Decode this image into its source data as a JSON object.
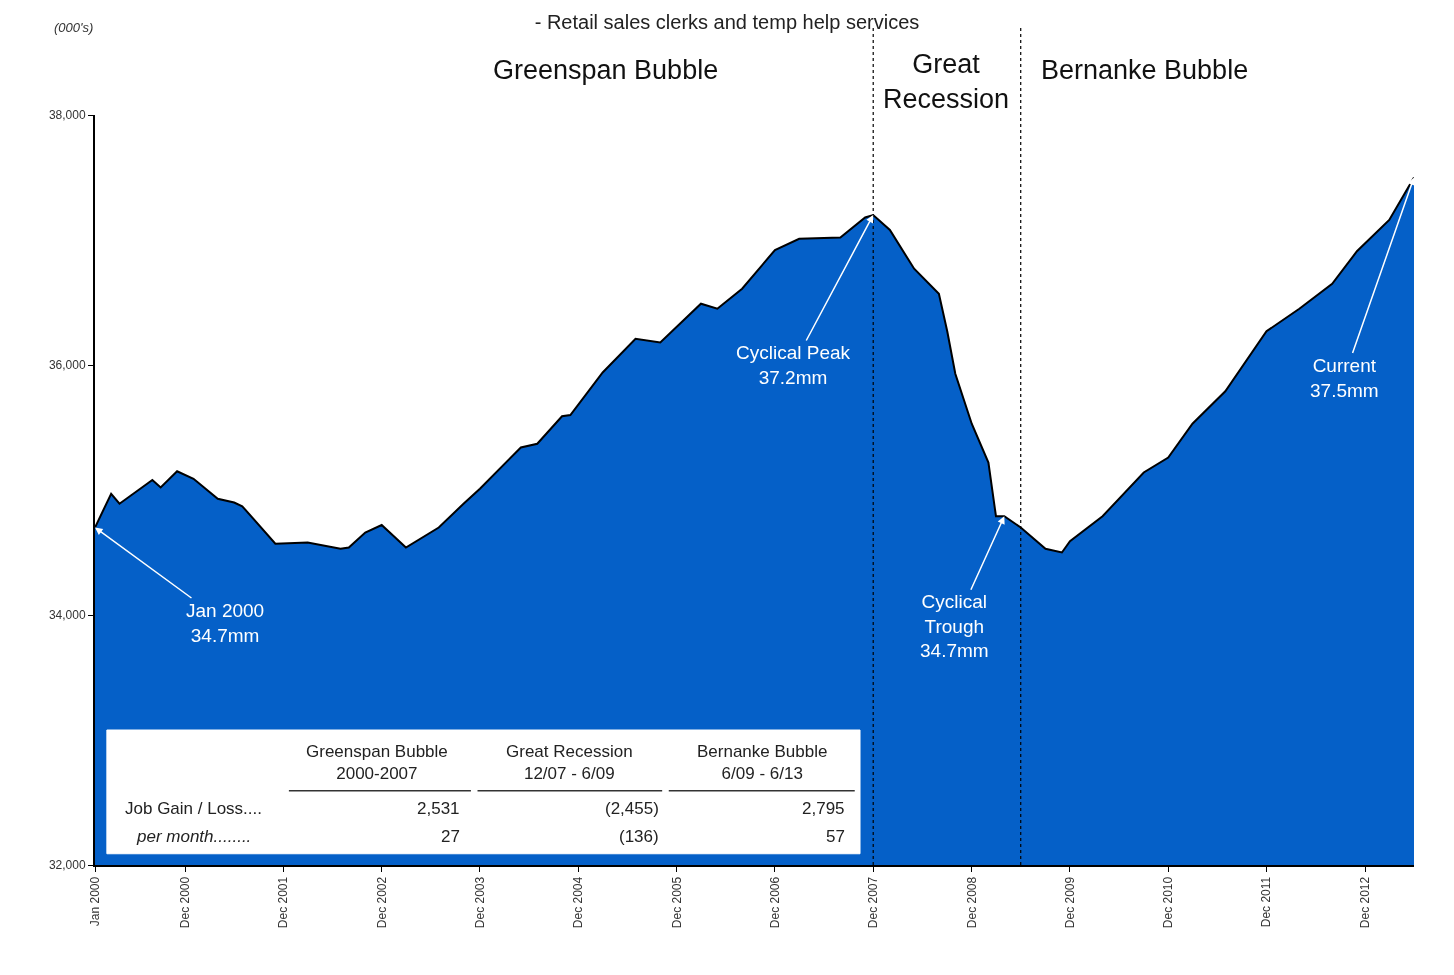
{
  "chart_data": {
    "type": "area",
    "title": "- Retail sales clerks and temp help services",
    "x": [
      "2000-01",
      "2000-03",
      "2000-04",
      "2000-08",
      "2000-09",
      "2000-11",
      "2001-01",
      "2001-04",
      "2001-06",
      "2001-07",
      "2001-11",
      "2002-03",
      "2002-07",
      "2002-08",
      "2002-10",
      "2002-12",
      "2003-03",
      "2003-07",
      "2003-10",
      "2003-12",
      "2004-05",
      "2004-07",
      "2004-10",
      "2004-11",
      "2005-03",
      "2005-07",
      "2005-10",
      "2006-03",
      "2006-05",
      "2006-08",
      "2006-12",
      "2007-03",
      "2007-08",
      "2007-11",
      "2007-12",
      "2008-02",
      "2008-05",
      "2008-08",
      "2008-09",
      "2008-10",
      "2008-12",
      "2009-02",
      "2009-03",
      "2009-04",
      "2009-06",
      "2009-09",
      "2009-11",
      "2009-12",
      "2010-04",
      "2010-09",
      "2010-12",
      "2011-03",
      "2011-07",
      "2011-12",
      "2012-04",
      "2012-08",
      "2012-11",
      "2013-03",
      "2013-06"
    ],
    "series": [
      {
        "color": "#0560c8",
        "values": [
          34700,
          34970,
          34890,
          35080,
          35020,
          35150,
          35090,
          34930,
          34900,
          34870,
          34570,
          34580,
          34530,
          34540,
          34660,
          34720,
          34540,
          34700,
          34890,
          35010,
          35340,
          35370,
          35590,
          35600,
          35940,
          36210,
          36180,
          36490,
          36450,
          36610,
          36920,
          37010,
          37020,
          37180,
          37200,
          37080,
          36770,
          36570,
          36270,
          35930,
          35530,
          35220,
          34790,
          34790,
          34700,
          34530,
          34500,
          34590,
          34790,
          35140,
          35260,
          35530,
          35790,
          36270,
          36450,
          36650,
          36910,
          37160,
          37500
        ]
      }
    ],
    "xlim": [
      "2000-01",
      "2013-06"
    ],
    "xticks": [
      {
        "value": "2000-01",
        "label": "Jan 2000"
      },
      {
        "value": "2000-12",
        "label": "Dec 2000"
      },
      {
        "value": "2001-12",
        "label": "Dec 2001"
      },
      {
        "value": "2002-12",
        "label": "Dec 2002"
      },
      {
        "value": "2003-12",
        "label": "Dec 2003"
      },
      {
        "value": "2004-12",
        "label": "Dec 2004"
      },
      {
        "value": "2005-12",
        "label": "Dec 2005"
      },
      {
        "value": "2006-12",
        "label": "Dec 2006"
      },
      {
        "value": "2007-12",
        "label": "Dec 2007"
      },
      {
        "value": "2008-12",
        "label": "Dec 2008"
      },
      {
        "value": "2009-12",
        "label": "Dec 2009"
      },
      {
        "value": "2010-12",
        "label": "Dec 2010"
      },
      {
        "value": "2011-12",
        "label": "Dec 2011"
      },
      {
        "value": "2012-12",
        "label": "Dec 2012"
      }
    ],
    "ylim": [
      32000,
      38000
    ],
    "yticks": [
      {
        "value": 32000,
        "label": "32,000"
      },
      {
        "value": 34000,
        "label": "34,000"
      },
      {
        "value": 36000,
        "label": "36,000"
      },
      {
        "value": 38000,
        "label": "38,000"
      }
    ],
    "ref_lines": [
      {
        "axis": "x",
        "value": "2007-12",
        "color": "#000000",
        "line_style": "dotted"
      },
      {
        "axis": "x",
        "value": "2009-06",
        "color": "#000000",
        "line_style": "dotted"
      }
    ],
    "annotations": [
      "Greenspan Bubble",
      "Great\nRecession",
      "Bernanke Bubble",
      {
        "text": "Jan 2000\n34.7mm",
        "x": "2000-01",
        "y": 34700
      },
      {
        "text": "Cyclical Peak\n37.2mm",
        "x": "2007-12",
        "y": 37200
      },
      {
        "text": "Cyclical\nTrough\n34.7mm",
        "x": "2009-04",
        "y": 34790
      },
      {
        "text": "Current\n37.5mm",
        "x": "2013-06",
        "y": 37500
      },
      "Greenspan Bubble\n2000-2007",
      "Great Recession\n12/07 - 6/09",
      "Bernanke Bubble\n6/09 - 6/13",
      "Job Gain / Loss....",
      "2,531",
      "(2,455)",
      "2,795",
      "per month........",
      "27",
      "(136)",
      "57",
      "(000's)"
    ]
  }
}
